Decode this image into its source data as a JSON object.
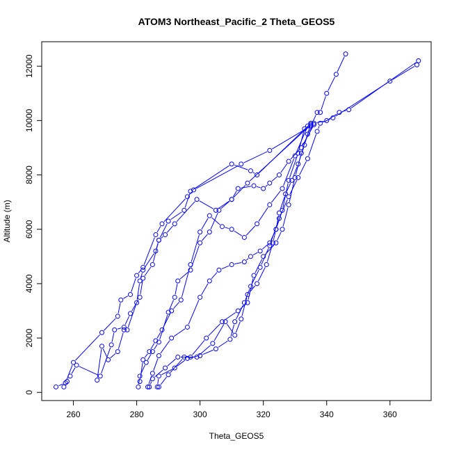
{
  "chart_data": {
    "type": "line",
    "title": "ATOM3 Northeast_Pacific_2 Theta_GEOS5",
    "xlabel": "Theta_GEOS5",
    "ylabel": "Altitude (m)",
    "xlim": [
      250,
      373
    ],
    "ylim": [
      -300,
      12900
    ],
    "xticks": [
      260,
      280,
      300,
      320,
      340,
      360
    ],
    "yticks": [
      0,
      2000,
      4000,
      6000,
      8000,
      10000,
      12000
    ],
    "grid": false,
    "legend": "none",
    "series_color": "#0000ff",
    "marker": "open-circle",
    "series": [
      {
        "x": [
          254.5,
          257.5,
          260,
          269,
          274,
          275,
          278,
          280,
          282,
          286,
          288,
          296,
          298,
          313,
          322,
          335
        ],
        "y": [
          200,
          350,
          1100,
          2200,
          2800,
          3400,
          3600,
          4300,
          4600,
          5800,
          6200,
          7200,
          7450,
          8400,
          8900,
          9800
        ]
      },
      {
        "x": [
          257,
          258,
          259,
          261,
          268.5,
          272,
          273,
          276,
          278,
          281,
          282,
          285,
          287,
          290,
          295,
          297,
          310,
          316,
          318,
          335
        ],
        "y": [
          200,
          400,
          600,
          1000,
          600,
          1750,
          2300,
          2400,
          2900,
          3500,
          4200,
          4700,
          5600,
          6300,
          6700,
          7400,
          8400,
          8150,
          8000,
          9900
        ]
      },
      {
        "x": [
          267.5,
          269,
          271,
          274,
          276,
          277,
          280,
          281,
          282,
          286,
          287,
          289,
          292,
          299,
          305,
          310,
          315,
          335
        ],
        "y": [
          450,
          1700,
          1200,
          1500,
          2300,
          2300,
          3300,
          4100,
          4500,
          5200,
          5600,
          5800,
          6200,
          7100,
          6700,
          7100,
          7700,
          9850
        ]
      },
      {
        "x": [
          280.5,
          281,
          283,
          285,
          287,
          290,
          292,
          293,
          297,
          300,
          303,
          306,
          310,
          312,
          317,
          320,
          322,
          325,
          328,
          332,
          336
        ],
        "y": [
          200,
          600,
          1100,
          1500,
          1850,
          2950,
          3500,
          4100,
          4500,
          5500,
          5900,
          6700,
          7100,
          7500,
          7600,
          7500,
          7700,
          8000,
          8500,
          9000,
          9850
        ]
      },
      {
        "x": [
          281,
          282,
          284,
          286,
          288,
          291,
          294,
          297,
          300,
          303,
          307,
          310,
          314,
          318,
          322,
          326,
          330,
          334
        ],
        "y": [
          400,
          1200,
          1500,
          1900,
          2300,
          3000,
          3400,
          4700,
          5900,
          6500,
          6100,
          6000,
          5700,
          6200,
          6900,
          7500,
          8700,
          9800
        ]
      },
      {
        "x": [
          283.5,
          285,
          287,
          291,
          296,
          300,
          303,
          306,
          310,
          314,
          316,
          319,
          322,
          324,
          325,
          327,
          329,
          331,
          333,
          335
        ],
        "y": [
          200,
          700,
          1350,
          2000,
          2400,
          3500,
          4100,
          4500,
          4700,
          4800,
          5000,
          5200,
          5500,
          6000,
          6600,
          7300,
          7800,
          8400,
          9100,
          9900
        ]
      },
      {
        "x": [
          284,
          285,
          289,
          293,
          297,
          302,
          307,
          312,
          315,
          317,
          320,
          324,
          326,
          328,
          330,
          332,
          334,
          336,
          340,
          344,
          347,
          369
        ],
        "y": [
          200,
          500,
          900,
          1300,
          1300,
          2000,
          2600,
          3000,
          3300,
          4300,
          5000,
          5500,
          6000,
          6900,
          7900,
          8800,
          9500,
          9900,
          10000,
          10300,
          10400,
          12200
        ]
      },
      {
        "x": [
          286.5,
          287,
          292,
          296,
          300,
          305,
          309.5,
          311,
          314,
          316,
          319,
          322,
          325,
          328,
          331,
          334,
          337,
          338,
          342,
          360,
          368.5
        ],
        "y": [
          200,
          600,
          900,
          1250,
          1350,
          1600,
          1950,
          2600,
          3300,
          3900,
          4600,
          5400,
          6400,
          7200,
          7900,
          8600,
          9600,
          9900,
          10100,
          11450,
          12050
        ]
      },
      {
        "x": [
          287,
          290,
          295,
          299,
          304,
          308,
          311,
          313,
          315,
          318,
          321,
          323,
          324,
          326,
          328,
          331,
          333,
          335,
          337,
          338,
          340,
          343,
          346
        ],
        "y": [
          200,
          650,
          1300,
          1300,
          1800,
          2600,
          2100,
          2700,
          3600,
          4000,
          4700,
          5500,
          6000,
          6700,
          7800,
          8800,
          9700,
          9800,
          10300,
          10300,
          11000,
          11700,
          12450
        ]
      }
    ]
  }
}
